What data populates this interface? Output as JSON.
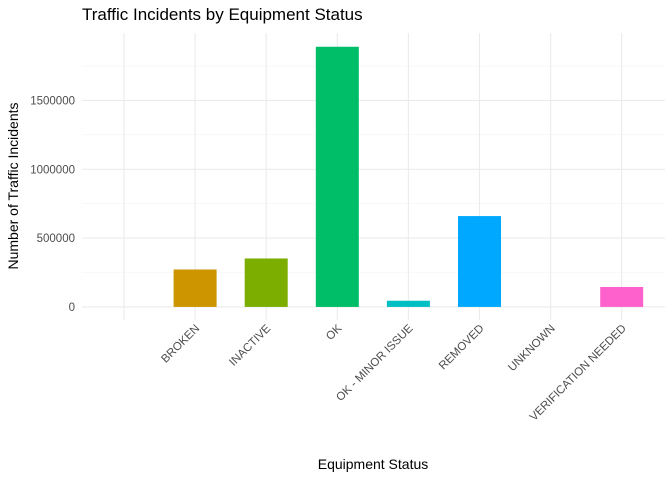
{
  "chart_data": {
    "type": "bar",
    "title": "Traffic Incidents by Equipment Status",
    "xlabel": "Equipment Status",
    "ylabel": "Number of Traffic Incidents",
    "categories": [
      "",
      "BROKEN",
      "INACTIVE",
      "OK",
      "OK - MINOR ISSUE",
      "REMOVED",
      "UNKNOWN",
      "VERIFICATION NEEDED"
    ],
    "values": [
      0,
      272000,
      352000,
      1890000,
      45000,
      660000,
      0,
      145000
    ],
    "colors": [
      "#F8766D",
      "#CD9600",
      "#7CAE00",
      "#00BE67",
      "#00BFC4",
      "#00A9FF",
      "#C77CFF",
      "#FF61CC"
    ],
    "y_ticks": [
      0,
      500000,
      1000000,
      1500000
    ],
    "y_tick_labels": [
      "0",
      "500000",
      "1000000",
      "1500000"
    ],
    "ylim": [
      -95000,
      1990000
    ],
    "grid": true,
    "legend": "none"
  }
}
